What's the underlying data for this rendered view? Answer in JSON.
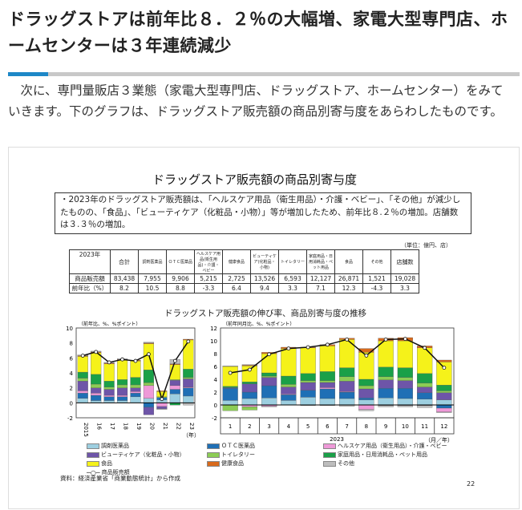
{
  "heading": "ドラッグストアは前年比８．２％の大幅増、家電大型専門店、ホームセンターは３年連続減少",
  "intro": "次に、専門量販店３業態（家電大型専門店、ドラッグストア、ホームセンター）をみていきます。下のグラフは、ドラッグストア販売額の商品別寄与度をあらわしたものです。",
  "slide": {
    "title": "ドラッグストア販売額の商品別寄与度",
    "note": "・2023年のドラッグストア販売額は、「ヘルスケア用品（衛生用品）・介護・ベビー」、「その他」が減少したものの、「食品」、「ビューティケア（化粧品・小物）」等が増加したため、前年比８.２％の増加。店舗数は３.３％の増加。",
    "unit": "（単位：億円、店）",
    "table": {
      "corner": "2023年",
      "headers": [
        "合計",
        "調剤医薬品",
        "ＯＴＣ医薬品",
        "ヘルスケア用品(衛生用品)・介護・ベビー",
        "健康食品",
        "ビューティケア(化粧品・小物)",
        "トイレタリー",
        "家庭用品・日用消耗品・ペット用品",
        "食品",
        "その他",
        "店舗数"
      ],
      "rows": [
        {
          "label": "商品販売額",
          "values": [
            "83,438",
            "7,955",
            "9,906",
            "5,215",
            "2,725",
            "13,526",
            "6,593",
            "12,127",
            "26,871",
            "1,521",
            "19,028"
          ]
        },
        {
          "label": "前年比（%）",
          "values": [
            "8.2",
            "10.5",
            "8.8",
            "-3.3",
            "6.4",
            "9.4",
            "3.3",
            "7.1",
            "12.3",
            "-4.3",
            "3.3"
          ]
        }
      ]
    },
    "chart_title": "ドラッグストア販売額の伸び率、商品別寄与度の推移",
    "source": "資料：経済産業省「商業動態統計」から作成",
    "page_number": "22"
  },
  "chart_data": [
    {
      "type": "bar",
      "stacked": true,
      "ylabel": "（前年比、%、%ポイント）",
      "xlabel": "（年）",
      "ylim": [
        -2,
        10
      ],
      "yticks": [
        10,
        8,
        6,
        4,
        2,
        0,
        -2
      ],
      "categories": [
        "2015",
        "16",
        "17",
        "18",
        "19",
        "20",
        "21",
        "22",
        "23"
      ],
      "series": [
        {
          "name": "調剤医薬品",
          "values": [
            0.6,
            0.3,
            0.3,
            0.3,
            0.8,
            0.6,
            0.4,
            1.2,
            0.9
          ]
        },
        {
          "name": "ＯＴＣ医薬品",
          "values": [
            0.7,
            0.7,
            0.5,
            0.5,
            0.5,
            -0.6,
            0.3,
            0.6,
            1.1
          ]
        },
        {
          "name": "ヘルスケア用品（衛生用品）・介護・ベビー",
          "values": [
            0.3,
            0.3,
            0.2,
            0.2,
            0.2,
            1.7,
            -0.5,
            0.5,
            0.1
          ]
        },
        {
          "name": "ビューティケア（化粧品・小物）",
          "values": [
            1.3,
            0.7,
            0.8,
            1.0,
            0.5,
            -1.0,
            -0.3,
            0.7,
            1.1
          ]
        },
        {
          "name": "トイレタリー",
          "values": [
            0.4,
            0.5,
            0.3,
            0.4,
            0.4,
            0.4,
            0.1,
            0.1,
            0.2
          ]
        },
        {
          "name": "家庭用品・日用消耗品・ペット用品",
          "values": [
            0.8,
            1.3,
            0.8,
            0.7,
            1.0,
            1.7,
            0.0,
            -0.3,
            1.1
          ]
        },
        {
          "name": "食品",
          "values": [
            2.1,
            2.9,
            2.3,
            2.6,
            2.2,
            3.5,
            0.7,
            2.0,
            3.9
          ]
        },
        {
          "name": "健康食品",
          "values": [
            0.1,
            0.1,
            0.1,
            0.1,
            0.1,
            0.1,
            0.1,
            0.1,
            0.1
          ]
        },
        {
          "name": "その他",
          "values": [
            0.1,
            0.1,
            0.1,
            0.1,
            0.0,
            0.1,
            -0.1,
            0.6,
            -0.3
          ]
        }
      ],
      "line": {
        "name": "商品販売額",
        "values": [
          6.3,
          6.8,
          5.4,
          5.8,
          5.6,
          6.5,
          0.5,
          5.6,
          8.2
        ]
      }
    },
    {
      "type": "bar",
      "stacked": true,
      "ylabel": "（前年同月比、%、%ポイント）",
      "xlabel": "（月／年）",
      "year_label": "2023",
      "ylim": [
        -2,
        12
      ],
      "yticks": [
        12,
        10,
        8,
        6,
        4,
        2,
        0,
        -2
      ],
      "categories": [
        "1",
        "2",
        "3",
        "4",
        "5",
        "6",
        "7",
        "8",
        "9",
        "10",
        "11",
        "12"
      ],
      "series": [
        {
          "name": "調剤医薬品",
          "values": [
            0.7,
            1.0,
            1.1,
            0.7,
            1.2,
            1.0,
            1.0,
            0.8,
            1.1,
            1.0,
            0.9,
            0.8
          ]
        },
        {
          "name": "ＯＴＣ医薬品",
          "values": [
            1.9,
            1.0,
            1.9,
            0.9,
            1.1,
            1.5,
            1.0,
            0.3,
            1.5,
            1.6,
            1.0,
            -0.5
          ]
        },
        {
          "name": "ヘルスケア用品（衛生用品）・介護・ベビー",
          "values": [
            0,
            -0.3,
            -0.2,
            0.1,
            0,
            0.2,
            0.1,
            -0.7,
            -0.1,
            -0.1,
            -0.1,
            -0.6
          ]
        },
        {
          "name": "ビューティケア（化粧品・小物）",
          "values": [
            0.1,
            1.3,
            1.3,
            1.1,
            1.2,
            0.8,
            1.6,
            1.4,
            1.3,
            1.2,
            0.9,
            1.1
          ]
        },
        {
          "name": "トイレタリー",
          "values": [
            -0.9,
            -0.5,
            0.2,
            0.4,
            0.3,
            0.3,
            0.7,
            0.5,
            0.5,
            0.5,
            0.6,
            0.3
          ]
        },
        {
          "name": "家庭用品・日用消耗品・ペット用品",
          "values": [
            0.2,
            0.3,
            0.5,
            1.3,
            1.1,
            1.4,
            1.4,
            1.0,
            1.5,
            1.5,
            1.5,
            0.9
          ]
        },
        {
          "name": "食品",
          "values": [
            3.1,
            2.5,
            3.0,
            4.3,
            4.0,
            4.0,
            4.4,
            4.2,
            4.1,
            4.2,
            4.0,
            3.6
          ]
        },
        {
          "name": "健康食品",
          "values": [
            0,
            0.1,
            0.2,
            0.2,
            0.1,
            0.2,
            0.2,
            0.6,
            0.4,
            0.5,
            0.3,
            0.3
          ]
        },
        {
          "name": "その他",
          "values": [
            0.1,
            0.1,
            -0.1,
            0,
            -0.1,
            -0.1,
            -0.2,
            -0.2,
            -0.2,
            -0.2,
            -0.3,
            -0.1
          ]
        }
      ],
      "line": {
        "name": "商品販売額",
        "values": [
          5.0,
          5.5,
          7.9,
          8.8,
          9.0,
          9.4,
          10.2,
          7.7,
          10.2,
          10.3,
          8.9,
          5.8
        ]
      }
    }
  ],
  "colors": [
    "#9dcfe0",
    "#1f6fb5",
    "#ee99d8",
    "#6e55a8",
    "#8ccc55",
    "#1aa048",
    "#f5f21a",
    "#d86a1c",
    "#bdbdbd"
  ]
}
